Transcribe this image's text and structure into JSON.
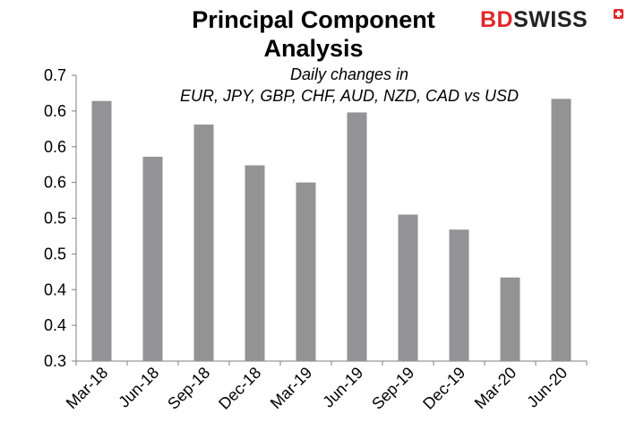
{
  "chart_data": {
    "type": "bar",
    "title_lines": [
      "Principal Component",
      "Analysis"
    ],
    "subtitle_lines": [
      "Daily changes in",
      "EUR, JPY, GBP, CHF, AUD, NZD, CAD vs USD"
    ],
    "categories": [
      "Mar-18",
      "Jun-18",
      "Sep-18",
      "Dec-18",
      "Mar-19",
      "Jun-19",
      "Sep-19",
      "Dec-19",
      "Mar-20",
      "Jun-20"
    ],
    "values": [
      0.664,
      0.586,
      0.631,
      0.574,
      0.55,
      0.648,
      0.505,
      0.484,
      0.417,
      0.667
    ],
    "ylim": [
      0.3,
      0.7
    ],
    "ytick_values": [
      0.3,
      0.35,
      0.4,
      0.45,
      0.5,
      0.55,
      0.6,
      0.65,
      0.7
    ],
    "ytick_labels": [
      "0.3",
      "0.4",
      "0.4",
      "0.5",
      "0.5",
      "0.6",
      "0.6",
      "0.6",
      "0.7"
    ],
    "xlabel": "",
    "ylabel": "",
    "bar_color": "#939396",
    "grid": false,
    "legend": "none"
  },
  "logo": {
    "part1": "BD",
    "part2": "SWISS"
  }
}
